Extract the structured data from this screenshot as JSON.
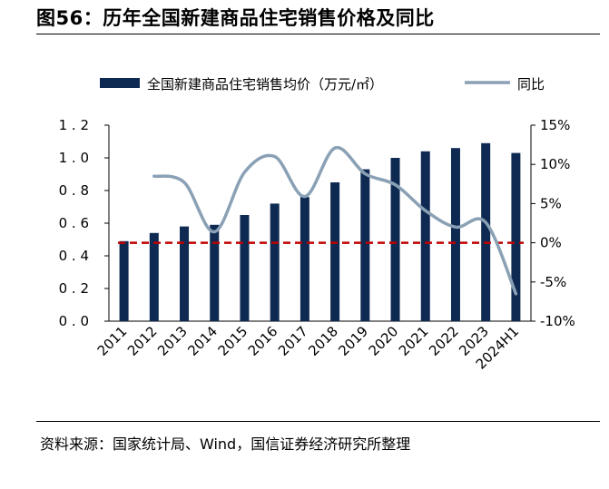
{
  "figure": {
    "title": "图56：历年全国新建商品住宅销售价格及同比",
    "source": "资料来源：国家统计局、Wind，国信证券经济研究所整理"
  },
  "chart_data": {
    "type": "bar",
    "categories": [
      "2011",
      "2012",
      "2013",
      "2014",
      "2015",
      "2016",
      "2017",
      "2018",
      "2019",
      "2020",
      "2021",
      "2022",
      "2023",
      "2024H1"
    ],
    "series": [
      {
        "name": "全国新建商品住宅销售均价（万元/㎡）",
        "type": "bar",
        "axis": "left",
        "color": "#0e2a52",
        "values": [
          0.49,
          0.54,
          0.58,
          0.59,
          0.65,
          0.72,
          0.76,
          0.85,
          0.93,
          1.0,
          1.04,
          1.06,
          1.09,
          1.03
        ]
      },
      {
        "name": "同比",
        "type": "line",
        "axis": "right",
        "color": "#8aa1b5",
        "values": [
          null,
          8.5,
          7.7,
          1.4,
          9.0,
          11.0,
          5.9,
          12.1,
          8.8,
          7.4,
          4.1,
          2.0,
          2.6,
          -6.5
        ]
      }
    ],
    "reference_line": {
      "value": 0,
      "axis": "right",
      "color": "#c00000",
      "style": "dashed"
    },
    "y_left": {
      "ticks": [
        "0.0",
        "0.2",
        "0.4",
        "0.6",
        "0.8",
        "1.0",
        "1.2"
      ],
      "ylim": [
        0,
        1.2
      ]
    },
    "y_right": {
      "ticks": [
        "15%",
        "10%",
        "5%",
        "0%",
        "-5%",
        "-10%"
      ],
      "ylim": [
        -10,
        15
      ]
    },
    "legend_position": "top",
    "grid": false
  }
}
